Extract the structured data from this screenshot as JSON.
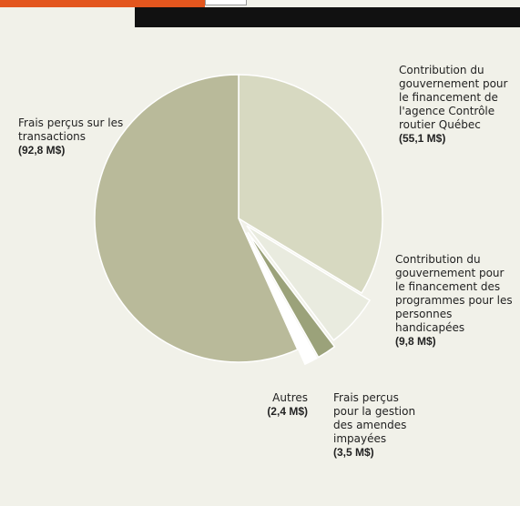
{
  "chart_data": {
    "type": "pie",
    "categories": [
      "Contribution du gouvernement pour le financement  de l'agence Contrôle routier Québec",
      "Contribution du gouvernement pour le financement des programmes pour les personnes handicapées",
      "Frais perçus pour la gestion des amendes impayées",
      "Autres",
      "Frais perçus sur les transactions"
    ],
    "values": [
      55.1,
      9.8,
      3.5,
      2.4,
      92.8
    ],
    "value_labels": [
      "(55,1 M$)",
      "(9,8 M$)",
      "(3,5 M$)",
      "(2,4 M$)",
      "(92,8 M$)"
    ],
    "colors": [
      "#d7d9c1",
      "#e9ebdf",
      "#9ba27a",
      "#ffffff",
      "#b9ba9a"
    ]
  }
}
